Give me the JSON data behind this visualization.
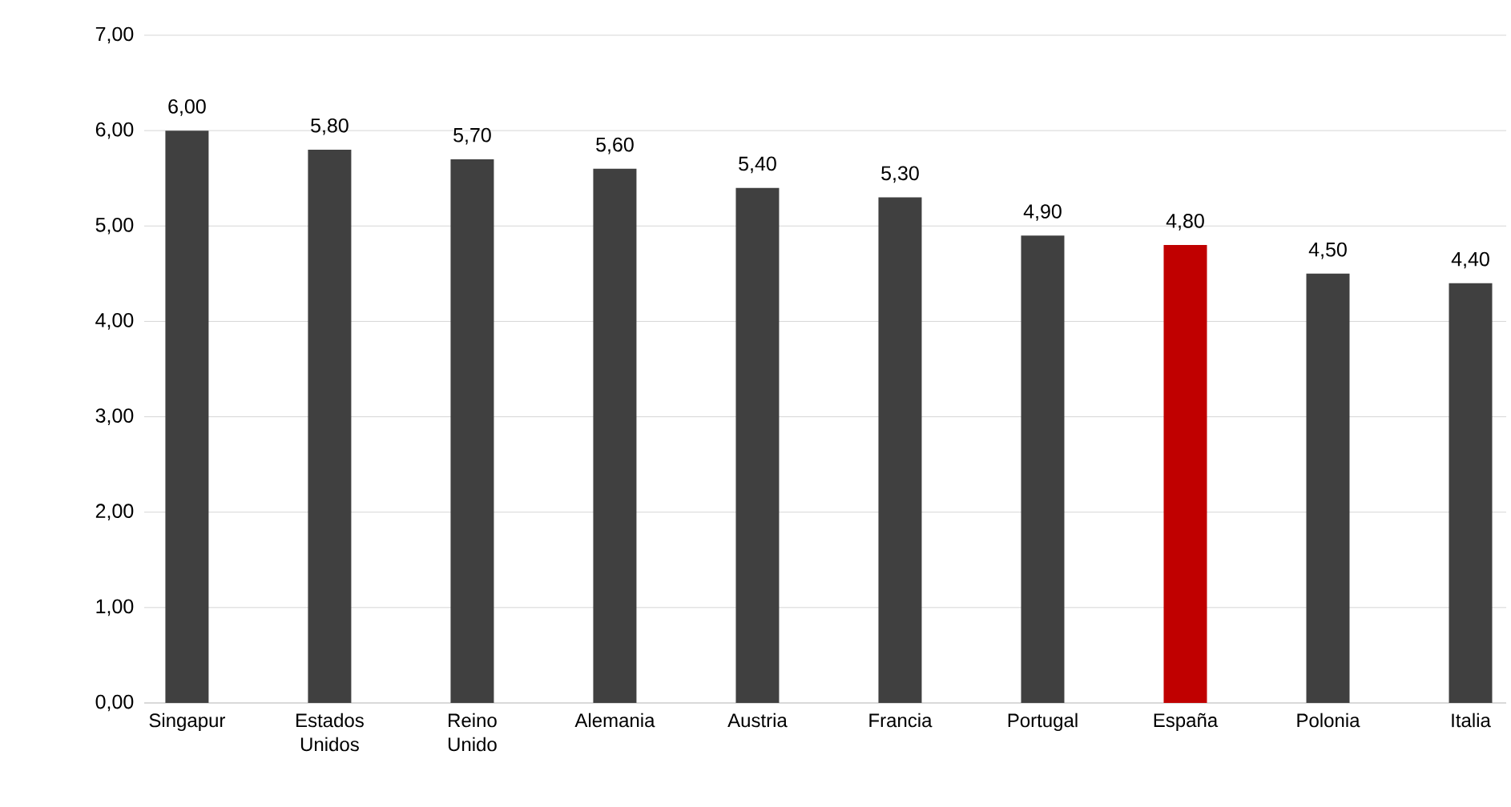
{
  "chart_data": {
    "type": "bar",
    "categories": [
      "Singapur",
      "Estados Unidos",
      "Reino Unido",
      "Alemania",
      "Austria",
      "Francia",
      "Portugal",
      "España",
      "Polonia",
      "Italia"
    ],
    "values": [
      6.0,
      5.8,
      5.7,
      5.6,
      5.4,
      5.3,
      4.9,
      4.8,
      4.5,
      4.4
    ],
    "value_labels": [
      "6,00",
      "5,80",
      "5,70",
      "5,60",
      "5,40",
      "5,30",
      "4,90",
      "4,80",
      "4,50",
      "4,40"
    ],
    "colors": [
      "#404040",
      "#404040",
      "#404040",
      "#404040",
      "#404040",
      "#404040",
      "#404040",
      "#c00000",
      "#404040",
      "#404040"
    ],
    "ylim": [
      0,
      7
    ],
    "yticks": [
      {
        "value": 0,
        "label": "0,00"
      },
      {
        "value": 1,
        "label": "1,00"
      },
      {
        "value": 2,
        "label": "2,00"
      },
      {
        "value": 3,
        "label": "3,00"
      },
      {
        "value": 4,
        "label": "4,00"
      },
      {
        "value": 5,
        "label": "5,00"
      },
      {
        "value": 6,
        "label": "6,00"
      },
      {
        "value": 7,
        "label": "7,00"
      }
    ],
    "grid": "y"
  }
}
